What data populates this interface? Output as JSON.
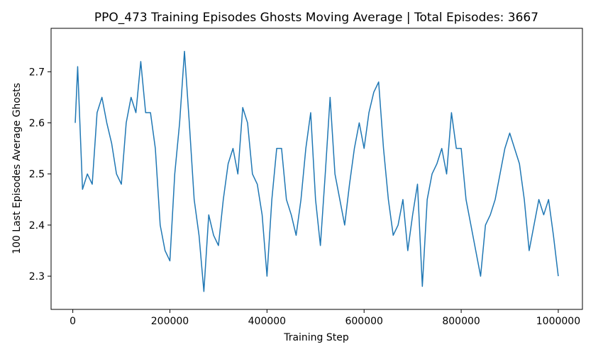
{
  "chart_data": {
    "type": "line",
    "title": "PPO_473 Training Episodes Ghosts Moving Average | Total Episodes: 3667",
    "x_label": "Training Step",
    "y_label": "100 Last Episodes Average Ghosts",
    "color": "#1f77b4",
    "x": [
      5000,
      10000,
      20000,
      30000,
      40000,
      50000,
      60000,
      70000,
      80000,
      90000,
      100000,
      110000,
      120000,
      130000,
      140000,
      150000,
      160000,
      170000,
      180000,
      190000,
      200000,
      210000,
      220000,
      230000,
      240000,
      250000,
      260000,
      270000,
      280000,
      290000,
      300000,
      310000,
      320000,
      330000,
      340000,
      350000,
      360000,
      370000,
      380000,
      390000,
      400000,
      410000,
      420000,
      430000,
      440000,
      450000,
      460000,
      470000,
      480000,
      490000,
      500000,
      510000,
      520000,
      530000,
      540000,
      550000,
      560000,
      570000,
      580000,
      590000,
      600000,
      610000,
      620000,
      630000,
      640000,
      650000,
      660000,
      670000,
      680000,
      690000,
      700000,
      710000,
      720000,
      730000,
      740000,
      750000,
      760000,
      770000,
      780000,
      790000,
      800000,
      810000,
      820000,
      830000,
      840000,
      850000,
      860000,
      870000,
      880000,
      890000,
      900000,
      910000,
      920000,
      930000,
      940000,
      950000,
      960000,
      970000,
      980000,
      990000,
      1000000
    ],
    "values": [
      2.6,
      2.71,
      2.47,
      2.5,
      2.48,
      2.62,
      2.65,
      2.6,
      2.56,
      2.5,
      2.48,
      2.6,
      2.65,
      2.62,
      2.72,
      2.62,
      2.62,
      2.55,
      2.4,
      2.35,
      2.33,
      2.5,
      2.6,
      2.74,
      2.6,
      2.45,
      2.38,
      2.27,
      2.42,
      2.38,
      2.36,
      2.45,
      2.52,
      2.55,
      2.5,
      2.63,
      2.6,
      2.5,
      2.48,
      2.42,
      2.3,
      2.45,
      2.55,
      2.55,
      2.45,
      2.42,
      2.38,
      2.45,
      2.55,
      2.62,
      2.45,
      2.36,
      2.5,
      2.65,
      2.5,
      2.45,
      2.4,
      2.48,
      2.55,
      2.6,
      2.55,
      2.62,
      2.66,
      2.68,
      2.55,
      2.45,
      2.38,
      2.4,
      2.45,
      2.35,
      2.42,
      2.48,
      2.28,
      2.45,
      2.5,
      2.52,
      2.55,
      2.5,
      2.62,
      2.55,
      2.55,
      2.45,
      2.4,
      2.35,
      2.3,
      2.4,
      2.42,
      2.45,
      2.5,
      2.55,
      2.58,
      2.55,
      2.52,
      2.45,
      2.35,
      2.4,
      2.45,
      2.42,
      2.45,
      2.38,
      2.3
    ],
    "xlim": [
      -44750,
      1049750
    ],
    "ylim": [
      2.235,
      2.785
    ],
    "xticks": [
      0,
      200000,
      400000,
      600000,
      800000,
      1000000
    ],
    "yticks": [
      2.3,
      2.4,
      2.5,
      2.6,
      2.7
    ]
  }
}
